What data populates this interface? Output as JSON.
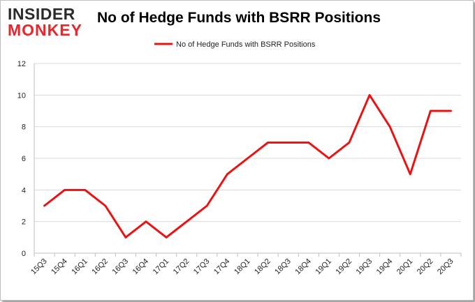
{
  "logo": {
    "line1": "INSIDER",
    "line2": "MONKEY"
  },
  "chart_data": {
    "type": "line",
    "title": "No of Hedge Funds with BSRR Positions",
    "xlabel": "",
    "ylabel": "",
    "categories": [
      "15Q3",
      "15Q4",
      "16Q1",
      "16Q2",
      "16Q3",
      "16Q4",
      "17Q1",
      "17Q2",
      "17Q3",
      "17Q4",
      "18Q1",
      "18Q2",
      "18Q3",
      "18Q4",
      "19Q1",
      "19Q2",
      "19Q3",
      "19Q4",
      "20Q1",
      "20Q2",
      "20Q3"
    ],
    "series": [
      {
        "name": "No of Hedge Funds with BSRR Positions",
        "color": "#ee1111",
        "values": [
          3,
          4,
          4,
          3,
          1,
          2,
          1,
          2,
          3,
          5,
          6,
          7,
          7,
          7,
          6,
          7,
          10,
          8,
          5,
          9,
          9
        ]
      }
    ],
    "ylim": [
      0,
      12
    ],
    "yticks": [
      0,
      2,
      4,
      6,
      8,
      10,
      12
    ],
    "grid": true,
    "legend": "top-center"
  }
}
